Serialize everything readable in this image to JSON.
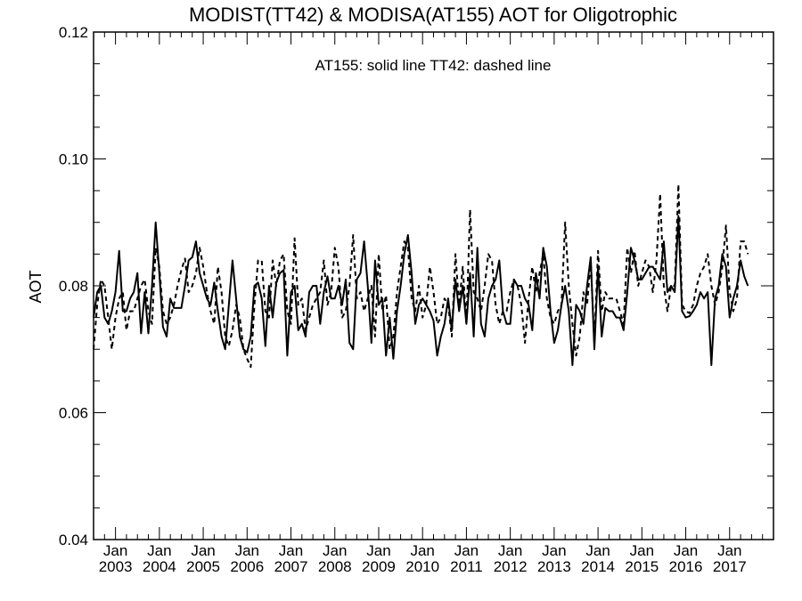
{
  "chart_data": {
    "type": "line",
    "title": "MODIST(TT42) & MODISA(AT155)  AOT for Oligotrophic",
    "ylabel": "AOT",
    "xlabel": "",
    "annotation": "AT155: solid line   TT42: dashed line",
    "ylim": [
      0.04,
      0.12
    ],
    "yticks": [
      "0.04",
      "0.06",
      "0.08",
      "0.10",
      "0.12"
    ],
    "xlim": [
      "2002-07",
      "2018-01"
    ],
    "x_month_label": "Jan",
    "x_year_labels": [
      "2003",
      "2004",
      "2005",
      "2006",
      "2007",
      "2008",
      "2009",
      "2010",
      "2011",
      "2012",
      "2013",
      "2014",
      "2015",
      "2016",
      "2017"
    ],
    "grid": false,
    "legend": "annotation text, top-center",
    "series": [
      {
        "name": "AT155",
        "style": "solid",
        "color": "#000000",
        "start": "2002-07",
        "values": [
          0.075,
          0.079,
          0.08,
          0.075,
          0.074,
          0.076,
          0.079,
          0.0855,
          0.076,
          0.076,
          0.078,
          0.079,
          0.082,
          0.0725,
          0.079,
          0.0725,
          0.08,
          0.09,
          0.082,
          0.0735,
          0.072,
          0.078,
          0.0765,
          0.0765,
          0.0765,
          0.08,
          0.084,
          0.0845,
          0.087,
          0.082,
          0.08,
          0.078,
          0.077,
          0.0805,
          0.076,
          0.072,
          0.07,
          0.077,
          0.084,
          0.078,
          0.072,
          0.07,
          0.0695,
          0.072,
          0.08,
          0.0805,
          0.078,
          0.0705,
          0.08,
          0.075,
          0.0805,
          0.082,
          0.0825,
          0.069,
          0.079,
          0.08,
          0.073,
          0.074,
          0.072,
          0.079,
          0.08,
          0.08,
          0.074,
          0.079,
          0.0815,
          0.078,
          0.078,
          0.08,
          0.077,
          0.081,
          0.071,
          0.07,
          0.081,
          0.082,
          0.087,
          0.08,
          0.071,
          0.084,
          0.077,
          0.078,
          0.069,
          0.075,
          0.0685,
          0.076,
          0.08,
          0.085,
          0.088,
          0.082,
          0.074,
          0.077,
          0.078,
          0.077,
          0.076,
          0.0745,
          0.069,
          0.072,
          0.074,
          0.078,
          0.073,
          0.081,
          0.076,
          0.08,
          0.074,
          0.082,
          0.072,
          0.086,
          0.074,
          0.072,
          0.078,
          0.08,
          0.081,
          0.084,
          0.076,
          0.074,
          0.074,
          0.081,
          0.08,
          0.08,
          0.078,
          0.077,
          0.073,
          0.082,
          0.078,
          0.086,
          0.083,
          0.076,
          0.071,
          0.073,
          0.077,
          0.08,
          0.076,
          0.0675,
          0.077,
          0.076,
          0.074,
          0.08,
          0.0845,
          0.07,
          0.083,
          0.072,
          0.0765,
          0.076,
          0.076,
          0.075,
          0.075,
          0.073,
          0.079,
          0.086,
          0.084,
          0.081,
          0.081,
          0.082,
          0.083,
          0.083,
          0.082,
          0.081,
          0.087,
          0.079,
          0.08,
          0.079,
          0.091,
          0.076,
          0.075,
          0.0752,
          0.076,
          0.077,
          0.079,
          0.078,
          0.079,
          0.0675,
          0.078,
          0.08,
          0.085,
          0.083,
          0.075,
          0.078,
          0.08,
          0.084,
          0.0815,
          0.08
        ]
      },
      {
        "name": "TT42",
        "style": "dashed",
        "color": "#000000",
        "start": "2002-07",
        "values": [
          0.07,
          0.077,
          0.081,
          0.08,
          0.075,
          0.07,
          0.075,
          0.078,
          0.079,
          0.073,
          0.076,
          0.076,
          0.078,
          0.08,
          0.081,
          0.076,
          0.074,
          0.086,
          0.083,
          0.076,
          0.074,
          0.075,
          0.077,
          0.08,
          0.0825,
          0.0843,
          0.079,
          0.08,
          0.082,
          0.086,
          0.083,
          0.079,
          0.076,
          0.074,
          0.083,
          0.079,
          0.072,
          0.0705,
          0.073,
          0.077,
          0.075,
          0.07,
          0.0685,
          0.0672,
          0.077,
          0.084,
          0.084,
          0.076,
          0.075,
          0.084,
          0.08,
          0.084,
          0.085,
          0.076,
          0.074,
          0.0875,
          0.077,
          0.078,
          0.073,
          0.075,
          0.077,
          0.078,
          0.079,
          0.084,
          0.077,
          0.079,
          0.086,
          0.083,
          0.075,
          0.076,
          0.08,
          0.088,
          0.078,
          0.079,
          0.076,
          0.078,
          0.08,
          0.072,
          0.085,
          0.076,
          0.0785,
          0.07,
          0.072,
          0.079,
          0.083,
          0.087,
          0.086,
          0.078,
          0.076,
          0.08,
          0.075,
          0.077,
          0.083,
          0.079,
          0.074,
          0.075,
          0.078,
          0.077,
          0.072,
          0.085,
          0.077,
          0.083,
          0.074,
          0.092,
          0.079,
          0.078,
          0.076,
          0.08,
          0.085,
          0.084,
          0.077,
          0.074,
          0.076,
          0.076,
          0.079,
          0.081,
          0.08,
          0.077,
          0.071,
          0.078,
          0.083,
          0.079,
          0.082,
          0.085,
          0.078,
          0.075,
          0.074,
          0.076,
          0.077,
          0.09,
          0.08,
          0.074,
          0.069,
          0.072,
          0.079,
          0.077,
          0.084,
          0.071,
          0.0855,
          0.076,
          0.079,
          0.078,
          0.078,
          0.078,
          0.076,
          0.074,
          0.086,
          0.082,
          0.0855,
          0.08,
          0.082,
          0.084,
          0.083,
          0.079,
          0.084,
          0.0945,
          0.08,
          0.076,
          0.08,
          0.08,
          0.096,
          0.077,
          0.076,
          0.0757,
          0.077,
          0.08,
          0.082,
          0.083,
          0.085,
          0.08,
          0.077,
          0.079,
          0.083,
          0.0895,
          0.079,
          0.076,
          0.078,
          0.087,
          0.087,
          0.085
        ]
      }
    ]
  }
}
